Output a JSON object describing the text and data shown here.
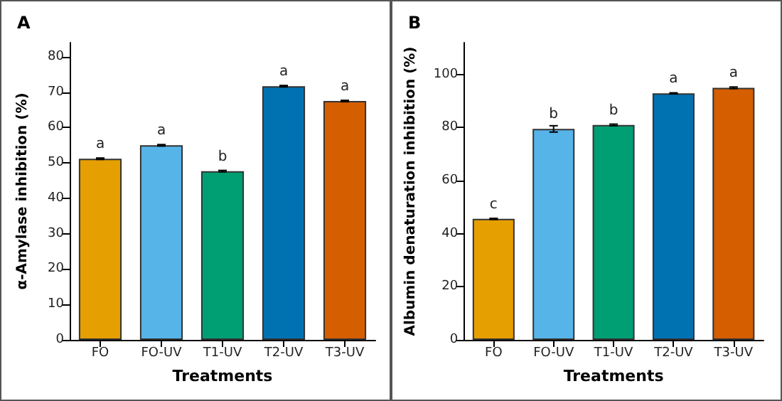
{
  "chart_data": [
    {
      "type": "bar",
      "title": "A",
      "xlabel": "Treatments",
      "ylabel": "α-Amylase inhibition (%)",
      "categories": [
        "FO",
        "FO-UV",
        "T1-UV",
        "T2-UV",
        "T3-UV"
      ],
      "values": [
        51.2,
        55.0,
        47.7,
        71.7,
        67.5
      ],
      "errors": [
        0.2,
        0.2,
        0.2,
        0.2,
        0.2
      ],
      "colors": [
        "#e69f00",
        "#56b4e9",
        "#009e73",
        "#0072b2",
        "#d55e00"
      ],
      "ylim": [
        0,
        84
      ],
      "yticks": [
        0,
        10,
        20,
        30,
        40,
        50,
        60,
        70,
        80
      ],
      "grid": false,
      "annotations": [
        {
          "text": "a",
          "x": "FO",
          "y": 51.2
        },
        {
          "text": "a",
          "x": "FO-UV",
          "y": 55.0
        },
        {
          "text": "b",
          "x": "T1-UV",
          "y": 47.7
        },
        {
          "text": "a",
          "x": "T2-UV",
          "y": 71.7
        },
        {
          "text": "a",
          "x": "T3-UV",
          "y": 67.5
        }
      ]
    },
    {
      "type": "bar",
      "title": "B",
      "xlabel": "Treatments",
      "ylabel": "Albumin denaturation inhibition (%)",
      "categories": [
        "FO",
        "FO-UV",
        "T1-UV",
        "T2-UV",
        "T3-UV"
      ],
      "values": [
        45.6,
        79.5,
        81.0,
        92.9,
        95.0
      ],
      "errors": [
        0.2,
        1.2,
        0.3,
        0.2,
        0.3
      ],
      "colors": [
        "#e69f00",
        "#56b4e9",
        "#009e73",
        "#0072b2",
        "#d55e00"
      ],
      "ylim": [
        0,
        112
      ],
      "yticks": [
        0,
        20,
        40,
        60,
        80,
        100
      ],
      "grid": false,
      "annotations": [
        {
          "text": "c",
          "x": "FO",
          "y": 45.6
        },
        {
          "text": "b",
          "x": "FO-UV",
          "y": 79.5
        },
        {
          "text": "b",
          "x": "T1-UV",
          "y": 81.0
        },
        {
          "text": "a",
          "x": "T2-UV",
          "y": 92.9
        },
        {
          "text": "a",
          "x": "T3-UV",
          "y": 95.0
        }
      ]
    }
  ]
}
